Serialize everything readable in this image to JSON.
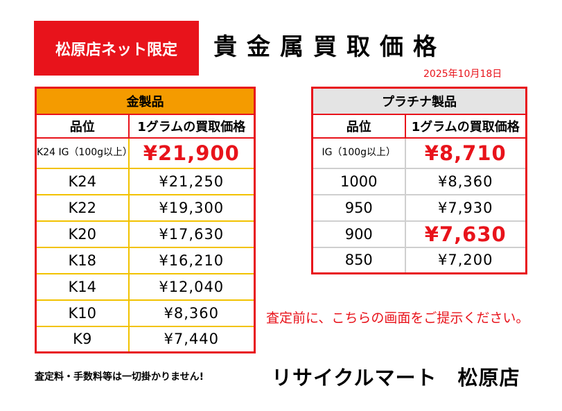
{
  "header": {
    "badge": "松原店ネット限定",
    "title": "貴金属買取価格",
    "date": "2025年10月18日"
  },
  "gold_table": {
    "title": "金製品",
    "col_grade": "品位",
    "col_price": "1グラムの買取価格",
    "rows": [
      {
        "grade": "K24 IG（100g以上）",
        "price": "¥21,900"
      },
      {
        "grade": "K24",
        "price": "¥21,250"
      },
      {
        "grade": "K22",
        "price": "¥19,300"
      },
      {
        "grade": "K20",
        "price": "¥17,630"
      },
      {
        "grade": "K18",
        "price": "¥16,210"
      },
      {
        "grade": "K14",
        "price": "¥12,040"
      },
      {
        "grade": "K10",
        "price": "¥8,360"
      },
      {
        "grade": "K9",
        "price": "¥7,440"
      }
    ]
  },
  "platinum_table": {
    "title": "プラチナ製品",
    "col_grade": "品位",
    "col_price": "1グラムの買取価格",
    "rows": [
      {
        "grade": "IG（100g以上）",
        "price": "¥8,710"
      },
      {
        "grade": "1000",
        "price": "¥8,360"
      },
      {
        "grade": "950",
        "price": "¥7,930"
      },
      {
        "grade": "900",
        "price": "¥7,630"
      },
      {
        "grade": "850",
        "price": "¥7,200"
      }
    ]
  },
  "notice": "査定前に、こちらの画面をご提示ください。",
  "footnote": "査定料・手数料等は一切掛かりません!",
  "store": "リサイクルマート　松原店",
  "colors": {
    "accent_red": "#e8131b",
    "gold_header": "#f49b00",
    "gold_border": "#f2c200",
    "platinum_header": "#e4e4e4"
  }
}
